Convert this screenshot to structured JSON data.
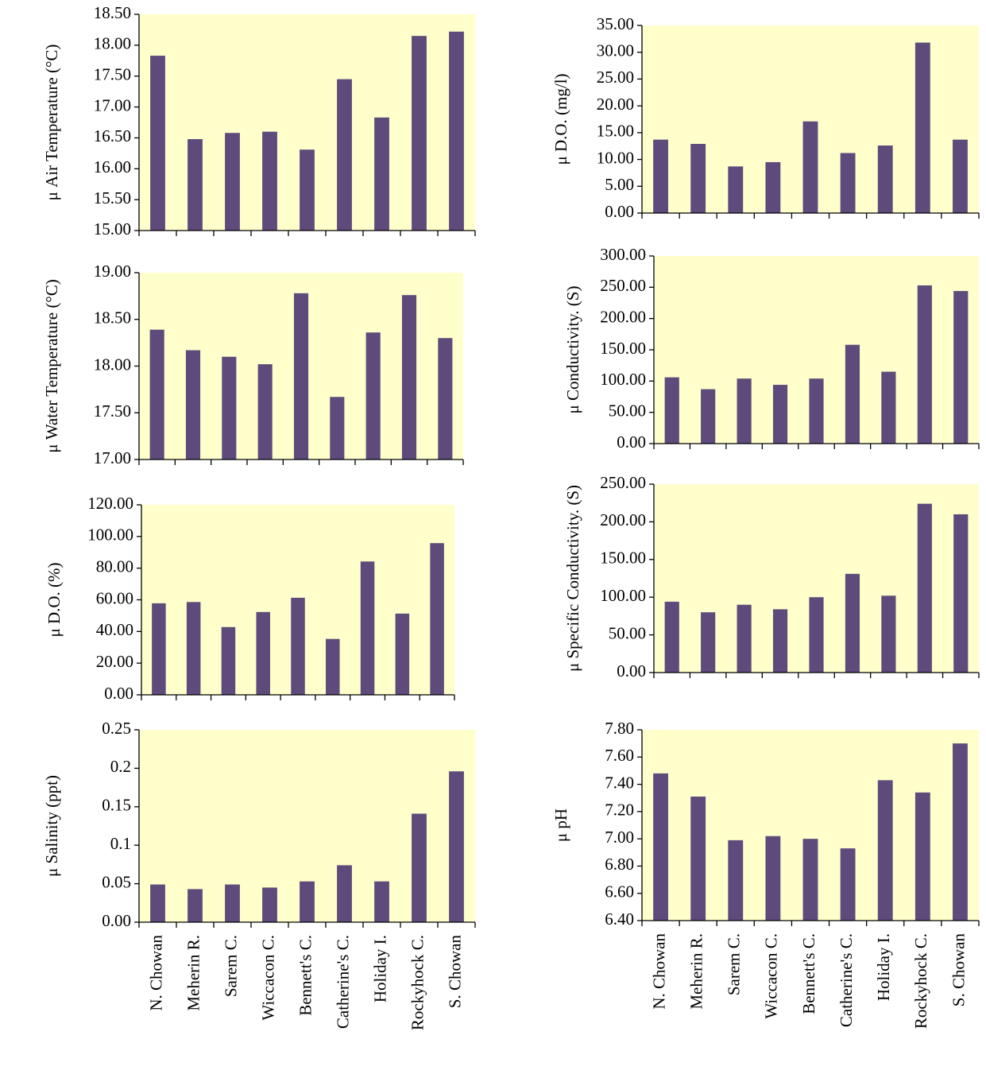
{
  "chart_data": [
    {
      "type": "bar",
      "y_label": "μ Air Temperature (°C)",
      "color": "#5e4b7c",
      "background": "#ffffcc",
      "values": [
        17.83,
        16.48,
        16.58,
        16.6,
        16.31,
        17.45,
        16.83,
        18.15,
        18.22
      ],
      "ylim": [
        15,
        18.5
      ],
      "yticks": [
        {
          "value": 15,
          "label": "15.00"
        },
        {
          "value": 15.5,
          "label": "15.50"
        },
        {
          "value": 16,
          "label": "16.00"
        },
        {
          "value": 16.5,
          "label": "16.50"
        },
        {
          "value": 17,
          "label": "17.00"
        },
        {
          "value": 17.5,
          "label": "17.50"
        },
        {
          "value": 18,
          "label": "18.00"
        },
        {
          "value": 18.5,
          "label": "18.50"
        }
      ]
    },
    {
      "type": "bar",
      "y_label": "μ D.O. (mg/l)",
      "color": "#5e4b7c",
      "background": "#ffffcc",
      "values": [
        13.7,
        12.9,
        8.7,
        9.5,
        17.1,
        11.2,
        12.6,
        31.8,
        13.7
      ],
      "ylim": [
        0,
        35
      ],
      "yticks": [
        {
          "value": 0,
          "label": "0.00"
        },
        {
          "value": 5,
          "label": "5.00"
        },
        {
          "value": 10,
          "label": "10.00"
        },
        {
          "value": 15,
          "label": "15.00"
        },
        {
          "value": 20,
          "label": "20.00"
        },
        {
          "value": 25,
          "label": "25.00"
        },
        {
          "value": 30,
          "label": "30.00"
        },
        {
          "value": 35,
          "label": "35.00"
        }
      ]
    },
    {
      "type": "bar",
      "y_label": "μ Water Temperature (°C)",
      "color": "#5e4b7c",
      "background": "#ffffcc",
      "values": [
        18.39,
        18.17,
        18.1,
        18.02,
        18.78,
        17.67,
        18.36,
        18.76,
        18.3
      ],
      "ylim": [
        17,
        19
      ],
      "yticks": [
        {
          "value": 17,
          "label": "17.00"
        },
        {
          "value": 17.5,
          "label": "17.50"
        },
        {
          "value": 18,
          "label": "18.00"
        },
        {
          "value": 18.5,
          "label": "18.50"
        },
        {
          "value": 19,
          "label": "19.00"
        }
      ]
    },
    {
      "type": "bar",
      "y_label": "μ Conductivity. (S)",
      "color": "#5e4b7c",
      "background": "#ffffcc",
      "values": [
        106,
        87,
        104,
        94,
        104,
        158,
        115,
        253,
        244
      ],
      "ylim": [
        0,
        300
      ],
      "yticks": [
        {
          "value": 0,
          "label": "0.00"
        },
        {
          "value": 50,
          "label": "50.00"
        },
        {
          "value": 100,
          "label": "100.00"
        },
        {
          "value": 150,
          "label": "150.00"
        },
        {
          "value": 200,
          "label": "200.00"
        },
        {
          "value": 250,
          "label": "250.00"
        },
        {
          "value": 300,
          "label": "300.00"
        }
      ]
    },
    {
      "type": "bar",
      "y_label": "μ D.O. (%)",
      "color": "#5e4b7c",
      "background": "#ffffcc",
      "values": [
        57.8,
        58.6,
        42.8,
        52.3,
        61.3,
        35.3,
        84.2,
        51.3,
        95.8
      ],
      "ylim": [
        0,
        120
      ],
      "yticks": [
        {
          "value": 0,
          "label": "0.00"
        },
        {
          "value": 20,
          "label": "20.00"
        },
        {
          "value": 40,
          "label": "40.00"
        },
        {
          "value": 60,
          "label": "60.00"
        },
        {
          "value": 80,
          "label": "80.00"
        },
        {
          "value": 100,
          "label": "100.00"
        },
        {
          "value": 120,
          "label": "120.00"
        }
      ]
    },
    {
      "type": "bar",
      "y_label": "μ Specific Conductivity. (S)",
      "color": "#5e4b7c",
      "background": "#ffffcc",
      "values": [
        94,
        80,
        90,
        84,
        100,
        131,
        102,
        224,
        210
      ],
      "ylim": [
        0,
        250
      ],
      "yticks": [
        {
          "value": 0,
          "label": "0.00"
        },
        {
          "value": 50,
          "label": "50.00"
        },
        {
          "value": 100,
          "label": "100.00"
        },
        {
          "value": 150,
          "label": "150.00"
        },
        {
          "value": 200,
          "label": "200.00"
        },
        {
          "value": 250,
          "label": "250.00"
        }
      ]
    },
    {
      "type": "bar",
      "y_label": "μ Salinity (ppt)",
      "color": "#5e4b7c",
      "background": "#ffffcc",
      "categories": [
        "N. Chowan",
        "Meherin R.",
        "Sarem C.",
        "Wiccacon C.",
        "Bennett's C.",
        "Catherine's C.",
        "Holiday I.",
        "Rockyhock C.",
        "S. Chowan"
      ],
      "values": [
        0.049,
        0.043,
        0.049,
        0.045,
        0.053,
        0.074,
        0.053,
        0.141,
        0.196
      ],
      "ylim": [
        0,
        0.25
      ],
      "yticks": [
        {
          "value": 0,
          "label": "0.00"
        },
        0.05,
        0.1,
        0.15,
        0.2,
        0.25
      ]
    },
    {
      "type": "bar",
      "y_label": "μ pH",
      "color": "#5e4b7c",
      "background": "#ffffcc",
      "categories": [
        "N. Chowan",
        "Meherin R.",
        "Sarem C.",
        "Wiccacon C.",
        "Bennett's C.",
        "Catherine's C.",
        "Holiday I.",
        "Rockyhock C.",
        "S. Chowan"
      ],
      "values": [
        7.48,
        7.31,
        6.99,
        7.02,
        7.0,
        6.93,
        7.43,
        7.34,
        7.7
      ],
      "ylim": [
        6.4,
        7.8
      ],
      "yticks": [
        {
          "value": 6.4,
          "label": "6.40"
        },
        {
          "value": 6.6,
          "label": "6.60"
        },
        {
          "value": 6.8,
          "label": "6.80"
        },
        {
          "value": 7,
          "label": "7.00"
        },
        {
          "value": 7.2,
          "label": "7.20"
        },
        {
          "value": 7.4,
          "label": "7.40"
        },
        {
          "value": 7.6,
          "label": "7.60"
        },
        {
          "value": 7.8,
          "label": "7.80"
        }
      ]
    }
  ]
}
